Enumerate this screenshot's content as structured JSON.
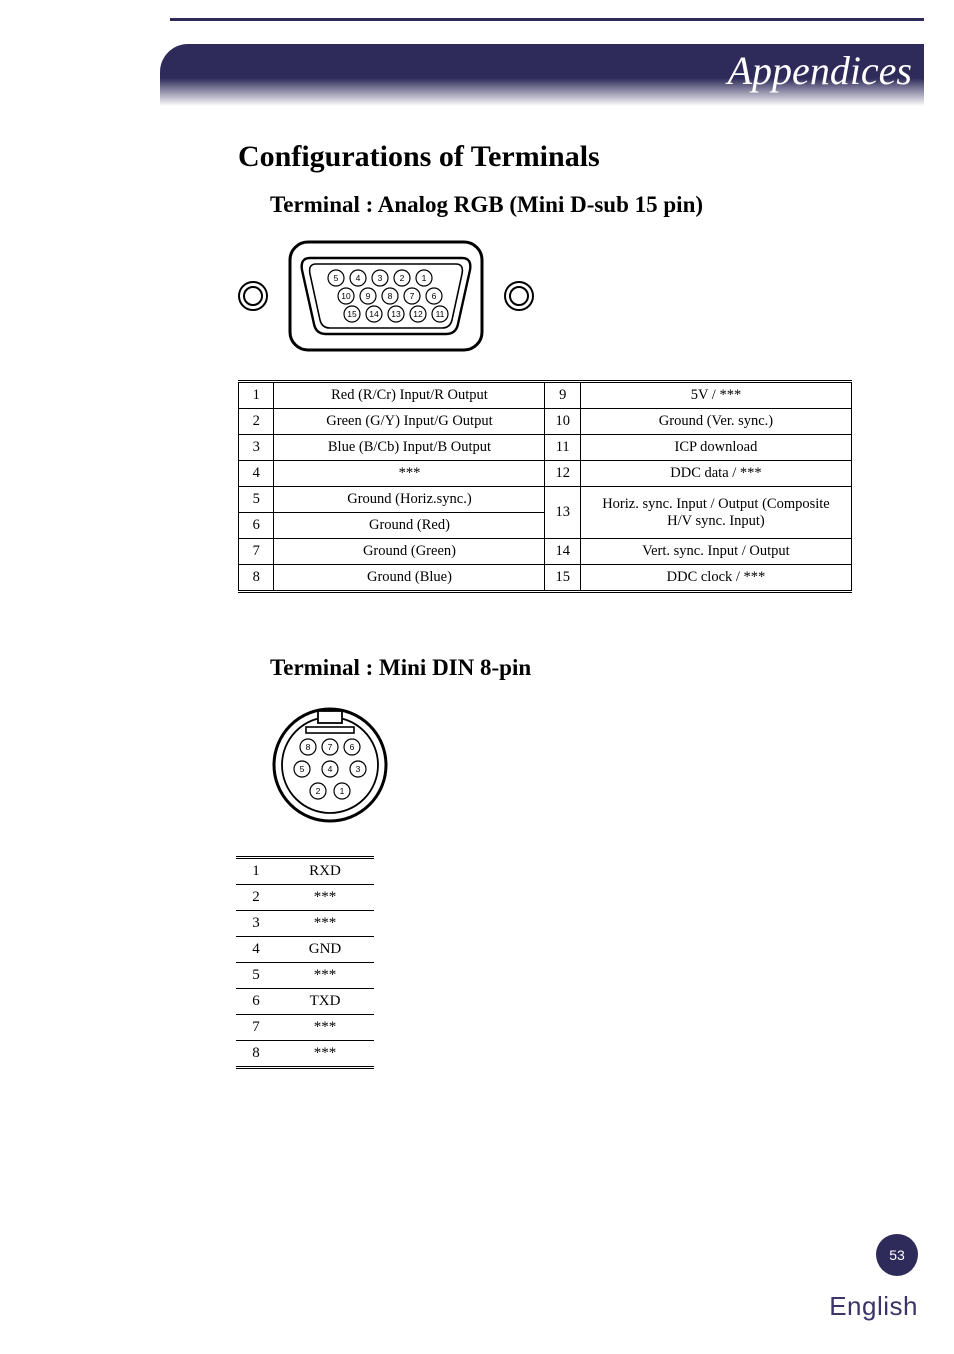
{
  "header": {
    "title": "Appendices",
    "accent_color": "#2e2a5a",
    "title_color": "#ffffff",
    "title_fontsize_pt": 40
  },
  "section_title": "Configurations of Terminals",
  "terminal_a": {
    "heading": "Terminal : Analog RGB (Mini D-sub 15 pin)",
    "pin_rows": [
      [
        "5",
        "4",
        "3",
        "2",
        "1"
      ],
      [
        "10",
        "9",
        "8",
        "7",
        "6"
      ],
      [
        "15",
        "14",
        "13",
        "12",
        "11"
      ]
    ],
    "table": {
      "left": [
        {
          "n": "1",
          "d": "Red (R/Cr) Input/R Output"
        },
        {
          "n": "2",
          "d": "Green (G/Y) Input/G Output"
        },
        {
          "n": "3",
          "d": "Blue (B/Cb) Input/B Output"
        },
        {
          "n": "4",
          "d": "***"
        },
        {
          "n": "5",
          "d": "Ground (Horiz.sync.)"
        },
        {
          "n": "6",
          "d": "Ground (Red)"
        },
        {
          "n": "7",
          "d": "Ground (Green)"
        },
        {
          "n": "8",
          "d": "Ground (Blue)"
        }
      ],
      "right": [
        {
          "n": "9",
          "d": "5V / ***"
        },
        {
          "n": "10",
          "d": "Ground (Ver. sync.)"
        },
        {
          "n": "11",
          "d": "ICP download"
        },
        {
          "n": "12",
          "d": "DDC data / ***"
        },
        {
          "n": "13",
          "d": "Horiz. sync. Input / Output (Composite H/V sync. Input)",
          "rowspan": 2
        },
        {
          "n": "14",
          "d": "Vert. sync. Input / Output"
        },
        {
          "n": "15",
          "d": "DDC clock / ***"
        }
      ]
    }
  },
  "terminal_b": {
    "heading": "Terminal : Mini DIN 8-pin",
    "pin_layout": {
      "row1": [
        "8",
        "7",
        "6"
      ],
      "row2": [
        "5",
        "4",
        "3"
      ],
      "row3": [
        "2",
        "1"
      ]
    },
    "table": [
      {
        "n": "1",
        "d": "RXD"
      },
      {
        "n": "2",
        "d": "***"
      },
      {
        "n": "3",
        "d": "***"
      },
      {
        "n": "4",
        "d": "GND"
      },
      {
        "n": "5",
        "d": "***"
      },
      {
        "n": "6",
        "d": "TXD"
      },
      {
        "n": "7",
        "d": "***"
      },
      {
        "n": "8",
        "d": "***"
      }
    ]
  },
  "footer": {
    "page_number": "53",
    "language": "English",
    "badge_color": "#2e2a5a",
    "lang_color": "#3a3566"
  },
  "style": {
    "body_font": "Palatino Linotype",
    "table_font_size_pt": 14.5,
    "border_color": "#000000",
    "background_color": "#ffffff"
  }
}
